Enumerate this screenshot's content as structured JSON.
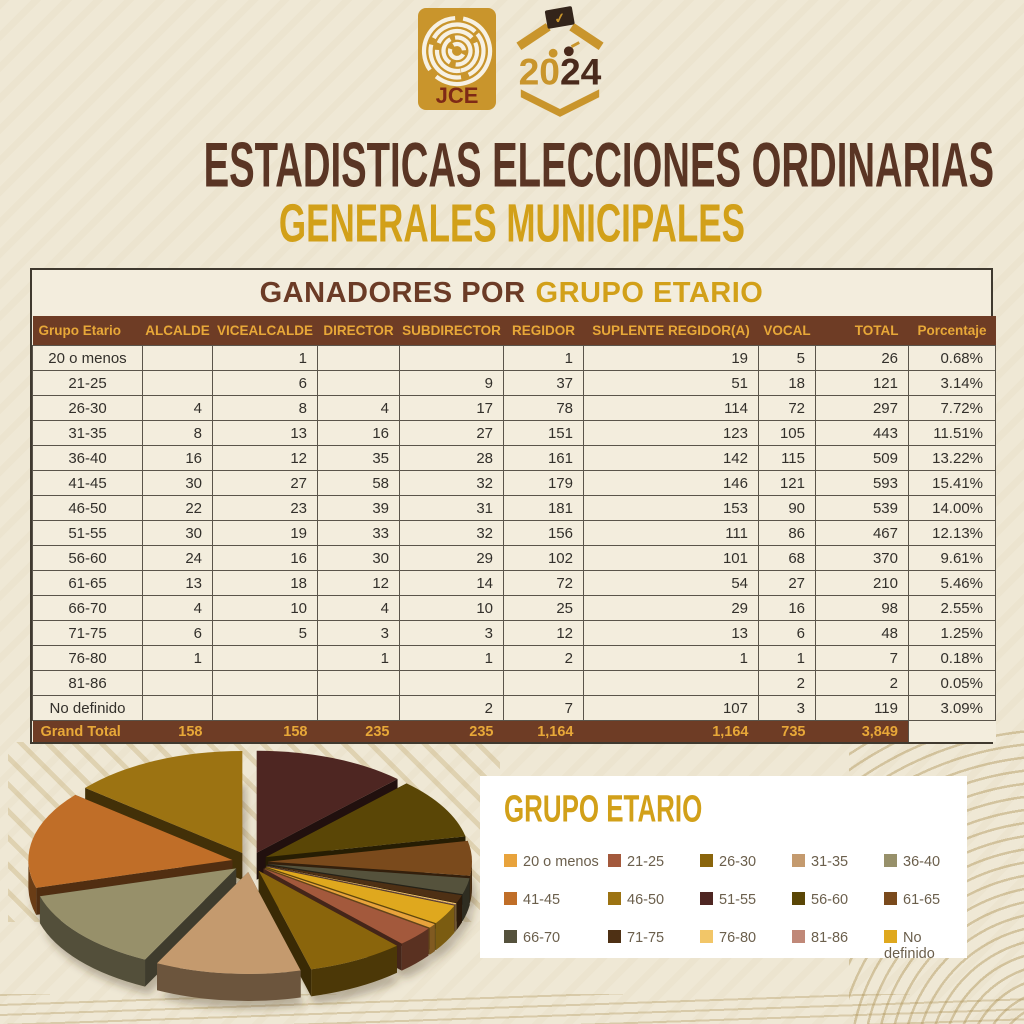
{
  "palette": {
    "background": "#EFE8D5",
    "panel_cream": "#F3EDDD",
    "header_brown": "#6E3C25",
    "gold_accent": "#D2A019",
    "header_gold_text": "#E8A838",
    "title_brown": "#5A3524",
    "body_text": "#33302B",
    "legend_text": "#6B5F4C",
    "logo_gold": "#C9952C",
    "logo_dark": "#4A2A1C",
    "jce_red": "#7E2A16"
  },
  "logos": {
    "jce_label": "JCE",
    "year_first": "20",
    "year_second": "24",
    "check_glyph": "✓"
  },
  "titles": {
    "main": "ESTADISTICAS ELECCIONES ORDINARIAS",
    "sub": "GENERALES MUNICIPALES"
  },
  "table": {
    "title_prefix": "GANADORES POR",
    "title_accent": "GRUPO ETARIO",
    "columns": [
      "Grupo Etario",
      "ALCALDE",
      "VICEALCALDE",
      "DIRECTOR",
      "SUBDIRECTOR",
      "REGIDOR",
      "SUPLENTE REGIDOR(A)",
      "VOCAL",
      "TOTAL",
      "Porcentaje"
    ],
    "rows": [
      [
        "20 o menos",
        "",
        "1",
        "",
        "",
        "1",
        "19",
        "5",
        "26",
        "0.68%"
      ],
      [
        "21-25",
        "",
        "6",
        "",
        "9",
        "37",
        "51",
        "18",
        "121",
        "3.14%"
      ],
      [
        "26-30",
        "4",
        "8",
        "4",
        "17",
        "78",
        "114",
        "72",
        "297",
        "7.72%"
      ],
      [
        "31-35",
        "8",
        "13",
        "16",
        "27",
        "151",
        "123",
        "105",
        "443",
        "11.51%"
      ],
      [
        "36-40",
        "16",
        "12",
        "35",
        "28",
        "161",
        "142",
        "115",
        "509",
        "13.22%"
      ],
      [
        "41-45",
        "30",
        "27",
        "58",
        "32",
        "179",
        "146",
        "121",
        "593",
        "15.41%"
      ],
      [
        "46-50",
        "22",
        "23",
        "39",
        "31",
        "181",
        "153",
        "90",
        "539",
        "14.00%"
      ],
      [
        "51-55",
        "30",
        "19",
        "33",
        "32",
        "156",
        "111",
        "86",
        "467",
        "12.13%"
      ],
      [
        "56-60",
        "24",
        "16",
        "30",
        "29",
        "102",
        "101",
        "68",
        "370",
        "9.61%"
      ],
      [
        "61-65",
        "13",
        "18",
        "12",
        "14",
        "72",
        "54",
        "27",
        "210",
        "5.46%"
      ],
      [
        "66-70",
        "4",
        "10",
        "4",
        "10",
        "25",
        "29",
        "16",
        "98",
        "2.55%"
      ],
      [
        "71-75",
        "6",
        "5",
        "3",
        "3",
        "12",
        "13",
        "6",
        "48",
        "1.25%"
      ],
      [
        "76-80",
        "1",
        "",
        "1",
        "1",
        "2",
        "1",
        "1",
        "7",
        "0.18%"
      ],
      [
        "81-86",
        "",
        "",
        "",
        "",
        "",
        "",
        "2",
        "2",
        "0.05%"
      ],
      [
        "No definido",
        "",
        "",
        "",
        "2",
        "7",
        "107",
        "3",
        "119",
        "3.09%"
      ]
    ],
    "grand_total": [
      "Grand Total",
      "158",
      "158",
      "235",
      "235",
      "1,164",
      "1,164",
      "735",
      "3,849",
      ""
    ]
  },
  "chart_data": {
    "type": "pie",
    "style": "3d-exploded",
    "title": "GRUPO ETARIO",
    "categories": [
      "20 o menos",
      "21-25",
      "26-30",
      "31-35",
      "36-40",
      "41-45",
      "46-50",
      "51-55",
      "56-60",
      "61-65",
      "66-70",
      "71-75",
      "76-80",
      "81-86",
      "No definido"
    ],
    "values": [
      0.68,
      3.14,
      7.72,
      11.51,
      13.22,
      15.41,
      14.0,
      12.13,
      9.61,
      5.46,
      2.55,
      1.25,
      0.18,
      0.05,
      3.09
    ],
    "unit": "percent",
    "colors": [
      "#E8A33C",
      "#A3593C",
      "#8A650C",
      "#C49A6E",
      "#97906A",
      "#C06E28",
      "#9C7312",
      "#4E2622",
      "#5A4606",
      "#7A4A1C",
      "#55523C",
      "#4E3014",
      "#F2C668",
      "#C08878",
      "#DFA81E"
    ],
    "slice_order_clockwise_from_top": [
      "51-55",
      "56-60",
      "61-65",
      "66-70",
      "71-75",
      "76-80",
      "81-86",
      "No definido",
      "20 o menos",
      "21-25",
      "26-30",
      "31-35",
      "36-40",
      "41-45",
      "46-50"
    ],
    "legend_position": "right-panel",
    "legend_rows": 3,
    "legend_cols": 5
  }
}
